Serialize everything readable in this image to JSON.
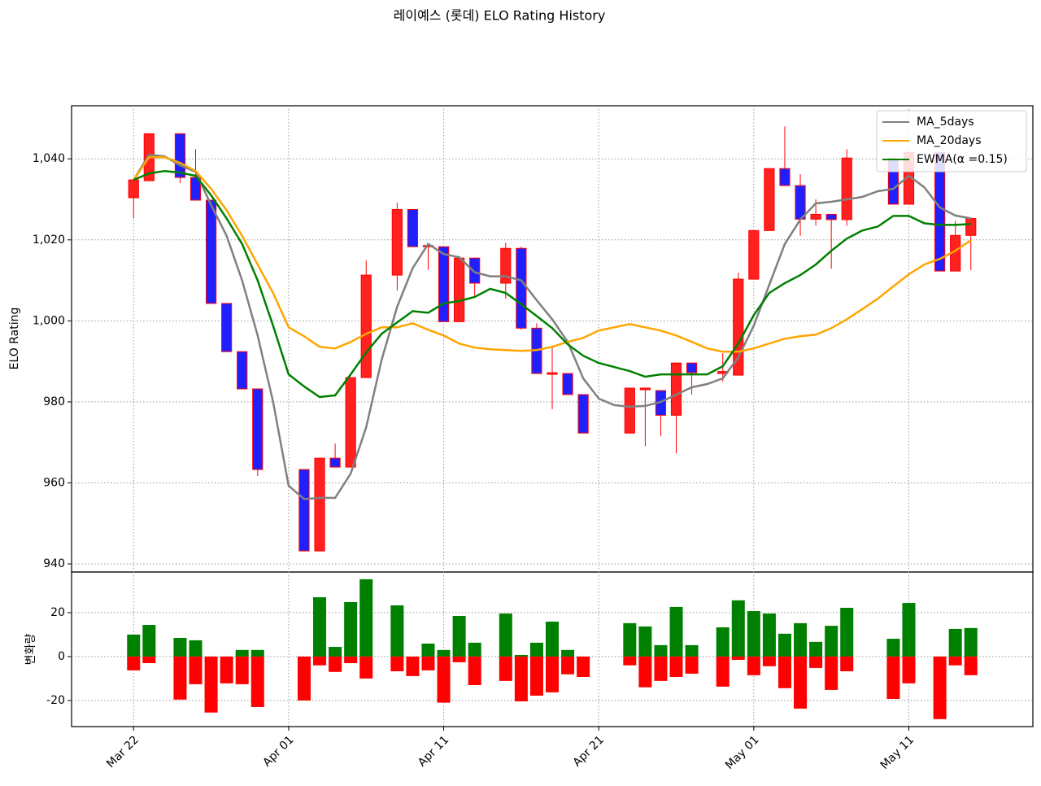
{
  "title": "레이예스 (롯데) ELO Rating History",
  "chart_data": [
    {
      "type": "candlestick",
      "y_label": "ELO Rating",
      "x": [
        "Mar 22",
        "Mar 23",
        "Mar 24",
        "Mar 25",
        "Mar 26",
        "Mar 27",
        "Mar 28",
        "Mar 29",
        "Mar 30",
        "Mar 31",
        "Apr 01",
        "Apr 02",
        "Apr 03",
        "Apr 04",
        "Apr 05",
        "Apr 06",
        "Apr 07",
        "Apr 08",
        "Apr 09",
        "Apr 10",
        "Apr 11",
        "Apr 12",
        "Apr 13",
        "Apr 14",
        "Apr 15",
        "Apr 16",
        "Apr 17",
        "Apr 18",
        "Apr 19",
        "Apr 20",
        "Apr 21",
        "Apr 22",
        "Apr 23",
        "Apr 24",
        "Apr 25",
        "Apr 26",
        "Apr 27",
        "Apr 28",
        "Apr 29",
        "Apr 30",
        "May 01",
        "May 02",
        "May 03",
        "May 04",
        "May 05",
        "May 06",
        "May 07",
        "May 08",
        "May 09",
        "May 10",
        "May 11",
        "May 12",
        "May 13",
        "May 14",
        "May 15"
      ],
      "open": [
        1030.4,
        1034.6,
        null,
        1046.2,
        1035.4,
        1029.8,
        1004.3,
        992.4,
        983.2,
        null,
        null,
        963.3,
        943.2,
        966.1,
        963.9,
        986,
        null,
        1011.3,
        1027.5,
        1018.3,
        1018.3,
        999.8,
        1015.5,
        null,
        1009.3,
        1017.9,
        998.2,
        986.8,
        987,
        981.8,
        null,
        null,
        972.3,
        983,
        982.8,
        976.7,
        989.6,
        null,
        987,
        986.6,
        1010.3,
        1022.3,
        1037.6,
        1033.4,
        1025.1,
        1026.3,
        1025,
        null,
        null,
        1040.2,
        1028.8,
        null,
        1041.6,
        1012.3,
        1021.1
      ],
      "high": [
        1034.8,
        1046.2,
        null,
        1046.2,
        1042.4,
        1029.8,
        1004.3,
        992.4,
        983.2,
        null,
        null,
        963.3,
        966.1,
        969.7,
        986,
        1014.9,
        null,
        1029.2,
        1027.5,
        1019,
        1018.3,
        1015.5,
        1015.5,
        null,
        1019.3,
        1018.3,
        999.4,
        993.8,
        987,
        981.8,
        null,
        null,
        983.4,
        983.4,
        982.8,
        989.6,
        989.6,
        null,
        992,
        1011.9,
        1022.3,
        1037.6,
        1048,
        1036.2,
        1030,
        1026.3,
        1042.4,
        null,
        null,
        1040.2,
        1041.6,
        null,
        1041.6,
        1024.7,
        1025.3
      ],
      "low": [
        1025.3,
        1034.6,
        null,
        1034,
        1029.8,
        1004.3,
        992.4,
        983.2,
        961.7,
        null,
        null,
        943.2,
        943.2,
        963.9,
        963.9,
        986,
        null,
        1007.5,
        1018.3,
        1012.6,
        999.8,
        999.8,
        1006.2,
        null,
        1005.5,
        997.8,
        987,
        978.2,
        981.8,
        972.3,
        null,
        null,
        972.3,
        969.1,
        971.5,
        967.3,
        981.8,
        null,
        985,
        986.6,
        1010.3,
        1022.3,
        1033.4,
        1021,
        1023.5,
        1012.9,
        1023.5,
        null,
        null,
        1028.8,
        1028.8,
        null,
        1012.3,
        1012.3,
        1012.5
      ],
      "close": [
        1034.8,
        1046.2,
        null,
        1035.4,
        1029.8,
        1004.3,
        992.4,
        983.2,
        963.3,
        null,
        null,
        943.2,
        966.1,
        963.9,
        986,
        1011.3,
        null,
        1027.5,
        1018.3,
        1018.6,
        999.8,
        1015.5,
        1009.3,
        null,
        1017.9,
        998.2,
        987,
        987.2,
        981.8,
        972.3,
        null,
        null,
        983.4,
        983.4,
        976.7,
        989.6,
        987.2,
        null,
        987.5,
        1010.3,
        1022.3,
        1037.6,
        1033.4,
        1025.1,
        1026.3,
        1025,
        1040.2,
        null,
        null,
        1028.8,
        1041.6,
        null,
        1012.3,
        1021.1,
        1025.3
      ],
      "up_color": "#ff2020",
      "down_color": "#2020ff",
      "edge_color": "#ff0000",
      "series": [
        {
          "name": "MA_5days",
          "color": "#808080",
          "values": [
            1034.8,
            1041,
            1040.6,
            1038.4,
            1036.8,
            1028.6,
            1021,
            1010,
            996.4,
            980,
            959.3,
            956,
            956.3,
            956.3,
            962.3,
            973.7,
            990.4,
            1003.5,
            1013,
            1019,
            1016.5,
            1015.7,
            1012,
            1011,
            1011,
            1010,
            1005.1,
            1000.4,
            994.8,
            985.8,
            980.8,
            979.2,
            978.8,
            979,
            980,
            981.8,
            983.6,
            984.4,
            985.8,
            991,
            998.8,
            1008.9,
            1019,
            1025,
            1029,
            1029.4,
            1030,
            1030.6,
            1032,
            1032.6,
            1035.8,
            1033,
            1028,
            1026,
            1025.3
          ]
        },
        {
          "name": "MA_20days",
          "color": "#ffa500",
          "values": [
            1034.8,
            1040.4,
            1040.4,
            1039,
            1037,
            1032.6,
            1027.3,
            1021,
            1013.9,
            1006.9,
            998.4,
            996.2,
            993.6,
            993.2,
            994.8,
            996.8,
            998.4,
            998.4,
            999.4,
            997.8,
            996.4,
            994.4,
            993.4,
            993,
            992.8,
            992.6,
            992.8,
            993.6,
            994.8,
            995.8,
            997.6,
            998.4,
            999.2,
            998.4,
            997.6,
            996.4,
            994.8,
            993.2,
            992.4,
            992.4,
            993.2,
            994.4,
            995.6,
            996.2,
            996.6,
            998.2,
            1000.4,
            1002.9,
            1005.5,
            1008.5,
            1011.5,
            1013.9,
            1015.3,
            1017.3,
            1019.9
          ]
        },
        {
          "name": "EWMA(α =0.15)",
          "color": "#008000",
          "values": [
            1034.8,
            1036.4,
            1037,
            1036.6,
            1035.8,
            1031,
            1025.3,
            1019,
            1010,
            998.8,
            986.8,
            983.8,
            981.2,
            981.6,
            986.8,
            992.2,
            996.8,
            999.6,
            1002.4,
            1002,
            1004.3,
            1004.9,
            1005.9,
            1007.9,
            1006.9,
            1004.1,
            1001.2,
            998.2,
            994.2,
            991.4,
            989.6,
            988.6,
            987.6,
            986.2,
            986.8,
            986.8,
            986.8,
            986.8,
            988.8,
            994.4,
            1001.4,
            1006.9,
            1009.3,
            1011.3,
            1013.9,
            1017.3,
            1020.3,
            1022.3,
            1023.3,
            1025.9,
            1025.9,
            1024.1,
            1023.7,
            1023.7,
            1023.9
          ]
        }
      ],
      "xlim": [
        "Mar 18",
        "May 19"
      ],
      "xticks": [
        "Mar 22",
        "Apr 01",
        "Apr 11",
        "Apr 21",
        "May 01",
        "May 11"
      ],
      "ylim": [
        938,
        1053.1
      ],
      "yticks": [
        940,
        960,
        980,
        {
          "value": 1000,
          "label": "1,000"
        },
        {
          "value": 1020,
          "label": "1,020"
        },
        {
          "value": 1040,
          "label": "1,040"
        }
      ],
      "grid": true,
      "legend": "upper right"
    },
    {
      "type": "bar",
      "y_label": "변화량",
      "x": [
        "Mar 22",
        "Mar 23",
        "Mar 24",
        "Mar 25",
        "Mar 26",
        "Mar 27",
        "Mar 28",
        "Mar 29",
        "Mar 30",
        "Mar 31",
        "Apr 01",
        "Apr 02",
        "Apr 03",
        "Apr 04",
        "Apr 05",
        "Apr 06",
        "Apr 07",
        "Apr 08",
        "Apr 09",
        "Apr 10",
        "Apr 11",
        "Apr 12",
        "Apr 13",
        "Apr 14",
        "Apr 15",
        "Apr 16",
        "Apr 17",
        "Apr 18",
        "Apr 19",
        "Apr 20",
        "Apr 21",
        "Apr 22",
        "Apr 23",
        "Apr 24",
        "Apr 25",
        "Apr 26",
        "Apr 27",
        "Apr 28",
        "Apr 29",
        "Apr 30",
        "May 01",
        "May 02",
        "May 03",
        "May 04",
        "May 05",
        "May 06",
        "May 07",
        "May 08",
        "May 09",
        "May 10",
        "May 11",
        "May 12",
        "May 13",
        "May 14",
        "May 15"
      ],
      "series": [
        {
          "color": "#008000",
          "values": [
            10,
            14.4,
            null,
            8.5,
            7.4,
            0,
            0,
            3,
            3,
            null,
            null,
            0,
            27,
            4.4,
            24.8,
            35.2,
            null,
            23.3,
            0,
            5.9,
            3,
            18.5,
            6.3,
            null,
            19.6,
            0.7,
            6.3,
            15.9,
            3,
            0,
            null,
            null,
            15.2,
            13.7,
            5.2,
            22.6,
            5.2,
            null,
            13.3,
            25.6,
            20.7,
            19.6,
            10.4,
            15.2,
            6.7,
            14,
            22.2,
            null,
            null,
            8.1,
            24.4,
            null,
            0,
            12.6,
            13
          ]
        },
        {
          "color": "#ff0000",
          "values": [
            -6.3,
            -3,
            null,
            -19.6,
            -12.6,
            -25.5,
            -12.2,
            -12.6,
            -23,
            null,
            null,
            -20,
            -4,
            -7,
            -3,
            -10,
            null,
            -6.7,
            -8.9,
            -6.3,
            -21,
            -2.6,
            -13,
            null,
            -11.1,
            -20.4,
            -17.8,
            -16.3,
            -8.1,
            -9.3,
            null,
            null,
            -4,
            -14,
            -11.1,
            -9.3,
            -7.8,
            null,
            -13.7,
            -1.5,
            -8.5,
            -4.4,
            -14.4,
            -23.7,
            -5.2,
            -15.2,
            -6.7,
            null,
            null,
            -19.3,
            -12.2,
            null,
            -28.5,
            -4,
            -8.5
          ]
        }
      ],
      "xlim": [
        "Mar 18",
        "May 19"
      ],
      "xticks": [
        "Mar 22",
        "Apr 01",
        "Apr 11",
        "Apr 21",
        "May 01",
        "May 11"
      ],
      "ylim": [
        -31.9,
        38.5
      ],
      "yticks": [
        -20,
        0,
        20
      ],
      "grid": true
    }
  ]
}
